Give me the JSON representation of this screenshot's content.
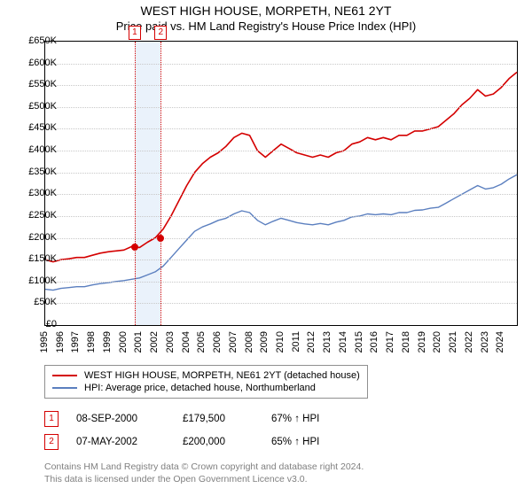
{
  "title": "WEST HIGH HOUSE, MORPETH, NE61 2YT",
  "subtitle": "Price paid vs. HM Land Registry's House Price Index (HPI)",
  "chart": {
    "type": "line",
    "background_color": "#ffffff",
    "grid_color": "#c8c8c8",
    "border_color": "#000000",
    "y": {
      "min": 0,
      "max": 650,
      "unit_prefix": "£",
      "unit_suffix": "K",
      "ticks": [
        0,
        50,
        100,
        150,
        200,
        250,
        300,
        350,
        400,
        450,
        500,
        550,
        600,
        650
      ]
    },
    "x": {
      "min": 1995,
      "max": 2025,
      "labels": [
        1995,
        1996,
        1997,
        1998,
        1999,
        2000,
        2001,
        2002,
        2003,
        2004,
        2005,
        2006,
        2007,
        2008,
        2009,
        2010,
        2011,
        2012,
        2013,
        2014,
        2015,
        2016,
        2017,
        2018,
        2019,
        2020,
        2021,
        2022,
        2023,
        2024
      ]
    },
    "series": [
      {
        "name": "WEST HIGH HOUSE, MORPETH, NE61 2YT (detached house)",
        "color": "#d40000",
        "line_width": 1.6,
        "data": [
          [
            1995,
            150
          ],
          [
            1995.5,
            145
          ],
          [
            1996,
            150
          ],
          [
            1996.5,
            152
          ],
          [
            1997,
            155
          ],
          [
            1997.5,
            155
          ],
          [
            1998,
            160
          ],
          [
            1998.5,
            165
          ],
          [
            1999,
            168
          ],
          [
            1999.5,
            170
          ],
          [
            2000,
            172
          ],
          [
            2000.5,
            180
          ],
          [
            2001,
            178
          ],
          [
            2001.5,
            190
          ],
          [
            2002,
            200
          ],
          [
            2002.5,
            220
          ],
          [
            2003,
            250
          ],
          [
            2003.5,
            285
          ],
          [
            2004,
            320
          ],
          [
            2004.5,
            350
          ],
          [
            2005,
            370
          ],
          [
            2005.5,
            385
          ],
          [
            2006,
            395
          ],
          [
            2006.5,
            410
          ],
          [
            2007,
            430
          ],
          [
            2007.5,
            440
          ],
          [
            2008,
            435
          ],
          [
            2008.5,
            400
          ],
          [
            2009,
            385
          ],
          [
            2009.5,
            400
          ],
          [
            2010,
            415
          ],
          [
            2010.5,
            405
          ],
          [
            2011,
            395
          ],
          [
            2011.5,
            390
          ],
          [
            2012,
            385
          ],
          [
            2012.5,
            390
          ],
          [
            2013,
            385
          ],
          [
            2013.5,
            395
          ],
          [
            2014,
            400
          ],
          [
            2014.5,
            415
          ],
          [
            2015,
            420
          ],
          [
            2015.5,
            430
          ],
          [
            2016,
            425
          ],
          [
            2016.5,
            430
          ],
          [
            2017,
            425
          ],
          [
            2017.5,
            435
          ],
          [
            2018,
            435
          ],
          [
            2018.5,
            445
          ],
          [
            2019,
            445
          ],
          [
            2019.5,
            450
          ],
          [
            2020,
            455
          ],
          [
            2020.5,
            470
          ],
          [
            2021,
            485
          ],
          [
            2021.5,
            505
          ],
          [
            2022,
            520
          ],
          [
            2022.5,
            540
          ],
          [
            2023,
            525
          ],
          [
            2023.5,
            530
          ],
          [
            2024,
            545
          ],
          [
            2024.5,
            565
          ],
          [
            2025,
            580
          ]
        ]
      },
      {
        "name": "HPI: Average price, detached house, Northumberland",
        "color": "#5b7fbf",
        "line_width": 1.4,
        "data": [
          [
            1995,
            82
          ],
          [
            1995.5,
            80
          ],
          [
            1996,
            84
          ],
          [
            1996.5,
            86
          ],
          [
            1997,
            88
          ],
          [
            1997.5,
            88
          ],
          [
            1998,
            92
          ],
          [
            1998.5,
            95
          ],
          [
            1999,
            97
          ],
          [
            1999.5,
            100
          ],
          [
            2000,
            102
          ],
          [
            2000.5,
            105
          ],
          [
            2001,
            108
          ],
          [
            2001.5,
            115
          ],
          [
            2002,
            122
          ],
          [
            2002.5,
            135
          ],
          [
            2003,
            155
          ],
          [
            2003.5,
            175
          ],
          [
            2004,
            195
          ],
          [
            2004.5,
            215
          ],
          [
            2005,
            225
          ],
          [
            2005.5,
            232
          ],
          [
            2006,
            240
          ],
          [
            2006.5,
            245
          ],
          [
            2007,
            255
          ],
          [
            2007.5,
            262
          ],
          [
            2008,
            258
          ],
          [
            2008.5,
            240
          ],
          [
            2009,
            230
          ],
          [
            2009.5,
            238
          ],
          [
            2010,
            245
          ],
          [
            2010.5,
            240
          ],
          [
            2011,
            235
          ],
          [
            2011.5,
            232
          ],
          [
            2012,
            230
          ],
          [
            2012.5,
            233
          ],
          [
            2013,
            230
          ],
          [
            2013.5,
            236
          ],
          [
            2014,
            240
          ],
          [
            2014.5,
            248
          ],
          [
            2015,
            250
          ],
          [
            2015.5,
            255
          ],
          [
            2016,
            253
          ],
          [
            2016.5,
            255
          ],
          [
            2017,
            253
          ],
          [
            2017.5,
            258
          ],
          [
            2018,
            258
          ],
          [
            2018.5,
            263
          ],
          [
            2019,
            264
          ],
          [
            2019.5,
            268
          ],
          [
            2020,
            270
          ],
          [
            2020.5,
            280
          ],
          [
            2021,
            290
          ],
          [
            2021.5,
            300
          ],
          [
            2022,
            310
          ],
          [
            2022.5,
            320
          ],
          [
            2023,
            312
          ],
          [
            2023.5,
            315
          ],
          [
            2024,
            323
          ],
          [
            2024.5,
            335
          ],
          [
            2025,
            345
          ]
        ]
      }
    ],
    "marker_band": {
      "from_year": 2000.69,
      "to_year": 2002.35,
      "fill": "#eaf2fb"
    },
    "markers": [
      {
        "label": "1",
        "year": 2000.69,
        "price": 179.5,
        "color": "#d40000"
      },
      {
        "label": "2",
        "year": 2002.35,
        "price": 200,
        "color": "#d40000"
      }
    ]
  },
  "legend": {
    "items": [
      {
        "color": "#d40000",
        "label": "WEST HIGH HOUSE, MORPETH, NE61 2YT (detached house)"
      },
      {
        "color": "#5b7fbf",
        "label": "HPI: Average price, detached house, Northumberland"
      }
    ]
  },
  "transactions": [
    {
      "badge": "1",
      "badge_color": "#d40000",
      "date": "08-SEP-2000",
      "price": "£179,500",
      "pct": "67% ↑ HPI"
    },
    {
      "badge": "2",
      "badge_color": "#d40000",
      "date": "07-MAY-2002",
      "price": "£200,000",
      "pct": "65% ↑ HPI"
    }
  ],
  "footer": {
    "line1": "Contains HM Land Registry data © Crown copyright and database right 2024.",
    "line2": "This data is licensed under the Open Government Licence v3.0."
  }
}
